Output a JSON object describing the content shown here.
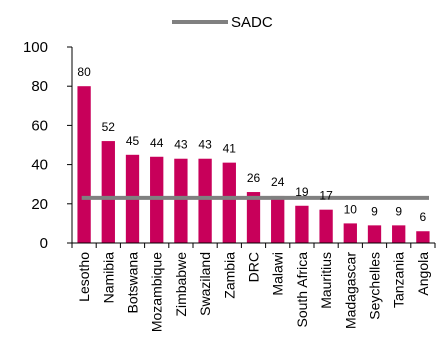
{
  "chart_data": {
    "type": "bar",
    "categories": [
      "Lesotho",
      "Namibia",
      "Botswana",
      "Mozambique",
      "Zimbabwe",
      "Swaziland",
      "Zambia",
      "DRC",
      "Malawi",
      "South Africa",
      "Mauritius",
      "Madagascar",
      "Seychelles",
      "Tanzania",
      "Angola"
    ],
    "values": [
      80,
      52,
      45,
      44,
      43,
      43,
      41,
      26,
      24,
      19,
      17,
      10,
      9,
      9,
      6
    ],
    "reference_line": {
      "name": "SADC",
      "value": 23
    },
    "ylim": [
      0,
      100
    ],
    "yticks": [
      0,
      20,
      40,
      60,
      80,
      100
    ],
    "grid": false,
    "legend": "top-center",
    "colors": {
      "bar": "#c8005a",
      "reference_line": "#808080"
    }
  }
}
